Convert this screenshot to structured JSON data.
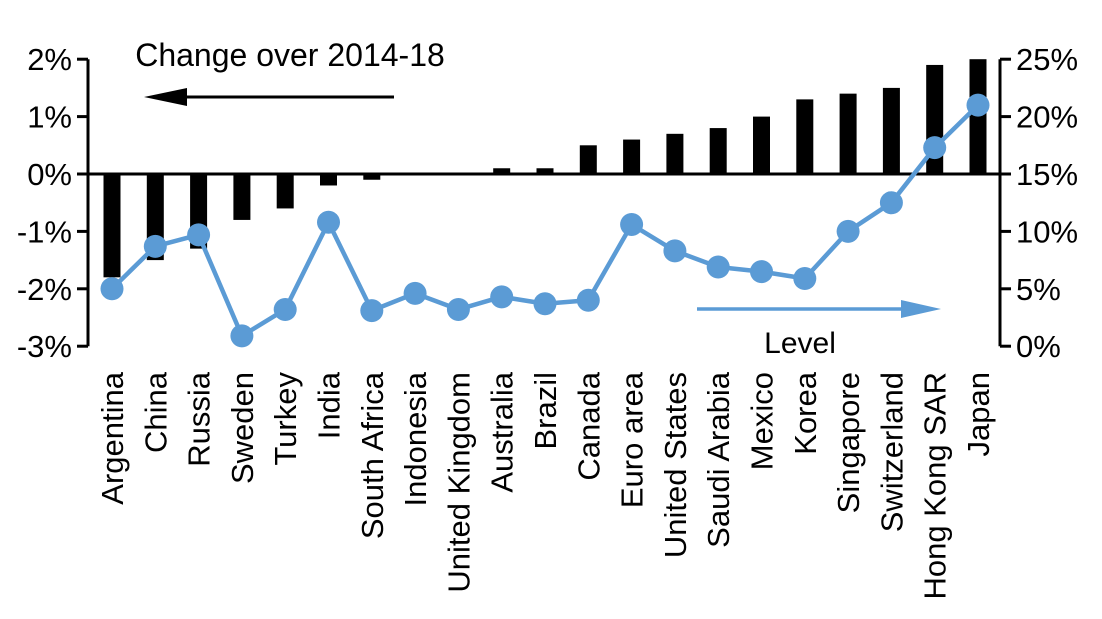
{
  "colors": {
    "background": "#FFFFFF",
    "bar": "#000000",
    "line": "#5B9BD5",
    "axis": "#000000",
    "text": "#000000"
  },
  "chart_data": {
    "type": "combo_bar_line",
    "categories": [
      "Argentina",
      "China",
      "Russia",
      "Sweden",
      "Turkey",
      "India",
      "South Africa",
      "Indonesia",
      "United Kingdom",
      "Australia",
      "Brazil",
      "Canada",
      "Euro area",
      "United States",
      "Saudi Arabia",
      "Mexico",
      "Korea",
      "Singapore",
      "Switzerland",
      "Hong Kong SAR",
      "Japan"
    ],
    "series": [
      {
        "name": "Change over 2014-18",
        "type": "bar",
        "axis": "left",
        "color": "#000000",
        "values": [
          -1.8,
          -1.5,
          -1.3,
          -0.8,
          -0.6,
          -0.2,
          -0.1,
          0.0,
          0.0,
          0.1,
          0.1,
          0.5,
          0.6,
          0.7,
          0.8,
          1.0,
          1.3,
          1.4,
          1.5,
          1.9,
          2.0
        ]
      },
      {
        "name": "Level",
        "type": "line",
        "axis": "right",
        "color": "#5B9BD5",
        "values": [
          5.0,
          8.7,
          9.7,
          0.9,
          3.2,
          10.8,
          3.1,
          4.6,
          3.2,
          4.3,
          3.7,
          4.0,
          10.6,
          8.3,
          6.9,
          6.5,
          5.9,
          10.0,
          12.5,
          17.3,
          21.0
        ]
      }
    ],
    "left_axis": {
      "unit": "%",
      "min": -3,
      "max": 2,
      "ticks": [
        2,
        1,
        0,
        -1,
        -2,
        -3
      ],
      "tick_labels": [
        "2%",
        "1%",
        "0%",
        "-1%",
        "-2%",
        "-3%"
      ]
    },
    "right_axis": {
      "unit": "%",
      "min": 0,
      "max": 25,
      "ticks": [
        25,
        20,
        15,
        10,
        5,
        0
      ],
      "tick_labels": [
        "25%",
        "20%",
        "15%",
        "10%",
        "5%",
        "0%"
      ]
    },
    "annotations": [
      {
        "text": "Change over 2014-18",
        "arrow": "left",
        "color": "#000000"
      },
      {
        "text": "Level",
        "arrow": "right",
        "color": "#5B9BD5"
      }
    ],
    "grid": false,
    "legend_position": "in-plot-annotations"
  }
}
